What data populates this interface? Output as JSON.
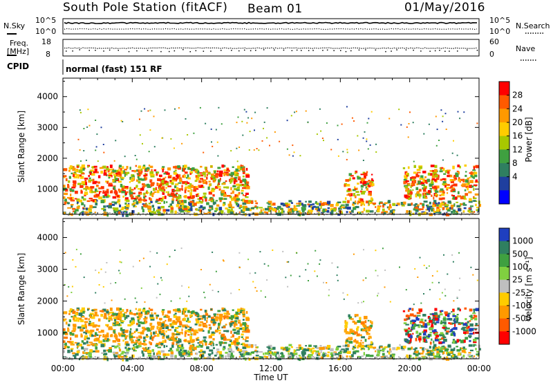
{
  "header": {
    "station": "South Pole Station (fitACF)",
    "beam": "Beam 01",
    "date": "01/May/2016"
  },
  "noise_panel": {
    "left_label": "N.Sky",
    "right_label": "N.Search",
    "left_ticks": [
      "10^5",
      "10^0"
    ],
    "right_ticks": [
      "10^5",
      "10^0"
    ]
  },
  "freq_panel": {
    "left_label_line1": "Freq.",
    "left_label_line2": "[MHz]",
    "right_label": "Nave",
    "left_ticks": [
      "18",
      "8"
    ],
    "right_ticks": [
      "60",
      "0"
    ]
  },
  "cpid": {
    "label": "CPID",
    "value": "normal (fast) 151 RF"
  },
  "chart_data": [
    {
      "type": "heatmap",
      "name": "power",
      "ylabel": "Slant Range [km]",
      "yticks": [
        "4000",
        "3000",
        "2000",
        "1000"
      ],
      "ylim": [
        180,
        4600
      ],
      "colorbar_label": "Power [dB]",
      "colorbar_ticks": [
        "28",
        "24",
        "20",
        "16",
        "12",
        "8",
        "4"
      ],
      "colorbar_colors": [
        "#ff0000",
        "#ff5a00",
        "#ff9900",
        "#ffcc00",
        "#a8c800",
        "#3fa040",
        "#2f7f60",
        "#1f3f9f",
        "#0000ff"
      ],
      "echo_regions": [
        {
          "t0": 0.0,
          "t1": 10.6,
          "r0": 650,
          "r1": 1800,
          "level": "high"
        },
        {
          "t0": 0.0,
          "t1": 24.0,
          "r0": 200,
          "r1": 650,
          "level": "mid"
        },
        {
          "t0": 16.2,
          "t1": 17.8,
          "r0": 600,
          "r1": 1600,
          "level": "high"
        },
        {
          "t0": 19.6,
          "t1": 23.8,
          "r0": 700,
          "r1": 1800,
          "level": "high"
        }
      ]
    },
    {
      "type": "heatmap",
      "name": "velocity",
      "ylabel": "Slant Range [km]",
      "yticks": [
        "4000",
        "3000",
        "2000",
        "1000"
      ],
      "ylim": [
        180,
        4600
      ],
      "colorbar_label": "Velocity [m s⁻¹]",
      "colorbar_ticks": [
        "1000",
        "500",
        "100",
        "25",
        "-25",
        "-100",
        "-500",
        "-1000"
      ],
      "colorbar_colors": [
        "#1f3fbf",
        "#2f7f60",
        "#3fa040",
        "#80d040",
        "#bfbfbf",
        "#ffcc00",
        "#ff9900",
        "#ff5a00",
        "#ff0000"
      ],
      "echo_regions": [
        {
          "t0": 0.0,
          "t1": 10.6,
          "r0": 650,
          "r1": 1800,
          "level": "negative"
        },
        {
          "t0": 0.0,
          "t1": 24.0,
          "r0": 200,
          "r1": 650,
          "level": "mixed"
        },
        {
          "t0": 16.2,
          "t1": 17.8,
          "r0": 600,
          "r1": 1600,
          "level": "negative"
        },
        {
          "t0": 19.6,
          "t1": 23.8,
          "r0": 700,
          "r1": 1800,
          "level": "positive"
        }
      ]
    }
  ],
  "time_axis": {
    "xlabel": "Time UT",
    "ticks": [
      "00:00",
      "04:00",
      "08:00",
      "12:00",
      "16:00",
      "20:00",
      "00:00"
    ],
    "xlim": [
      0,
      24
    ]
  }
}
